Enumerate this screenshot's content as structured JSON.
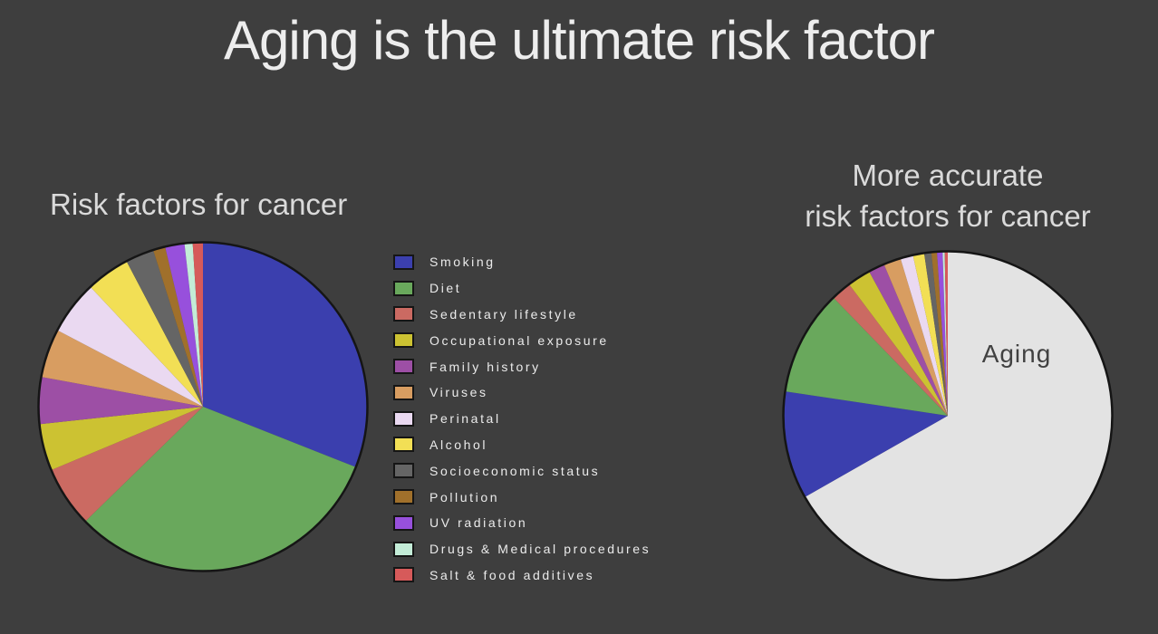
{
  "slide": {
    "title": "Aging is the ultimate risk factor",
    "background_color": "#3e3e3e"
  },
  "left_chart": {
    "title": "Risk factors for cancer"
  },
  "right_chart": {
    "title_line1": "More accurate",
    "title_line2": "risk factors for cancer"
  },
  "chart_data": [
    {
      "type": "pie",
      "title": "Risk factors for cancer",
      "unit": "percent of circle, estimated from slice angles",
      "start_angle_deg": 0,
      "direction": "clockwise",
      "legend_position": "right",
      "categories": [
        "Smoking",
        "Diet",
        "Sedentary lifestyle",
        "Occupational exposure",
        "Family history",
        "Viruses",
        "Perinatal",
        "Alcohol",
        "Socioeconomic status",
        "Pollution",
        "UV radiation",
        "Drugs & Medical procedures",
        "Salt & food additives"
      ],
      "values": [
        31,
        31.7,
        6,
        4.6,
        4.6,
        4.8,
        5.3,
        4.3,
        2.8,
        1.2,
        1.9,
        0.8,
        1.0
      ],
      "colors": [
        "#3b3fae",
        "#69a85c",
        "#cb6a62",
        "#ccc232",
        "#9d4fa5",
        "#d89d61",
        "#ead9f1",
        "#f2df55",
        "#656565",
        "#a0702b",
        "#9750dc",
        "#c3ecd7",
        "#d65a5a"
      ],
      "outline_color": "#151515"
    },
    {
      "type": "pie",
      "title": "More accurate risk factors for cancer",
      "unit": "percent of circle, estimated from slice angles",
      "start_angle_deg": 0,
      "direction": "clockwise",
      "legend_position": "none",
      "annotation": "Aging",
      "categories": [
        "Aging",
        "Smoking",
        "Diet",
        "Sedentary lifestyle",
        "Occupational exposure",
        "Family history",
        "Viruses",
        "Perinatal",
        "Alcohol",
        "Socioeconomic status",
        "Pollution",
        "UV radiation",
        "Drugs & Medical procedures",
        "Salt & food additives"
      ],
      "values": [
        66.8,
        10.6,
        10.4,
        2.0,
        2.3,
        1.6,
        1.7,
        1.25,
        1.1,
        0.7,
        0.55,
        0.55,
        0.2,
        0.3
      ],
      "colors": [
        "#e3e3e3",
        "#3b3fae",
        "#69a85c",
        "#cb6a62",
        "#ccc232",
        "#9d4fa5",
        "#d89d61",
        "#ead9f1",
        "#f2df55",
        "#656565",
        "#a0702b",
        "#9750dc",
        "#c3ecd7",
        "#d65a5a"
      ],
      "outline_color": "#151515"
    }
  ]
}
